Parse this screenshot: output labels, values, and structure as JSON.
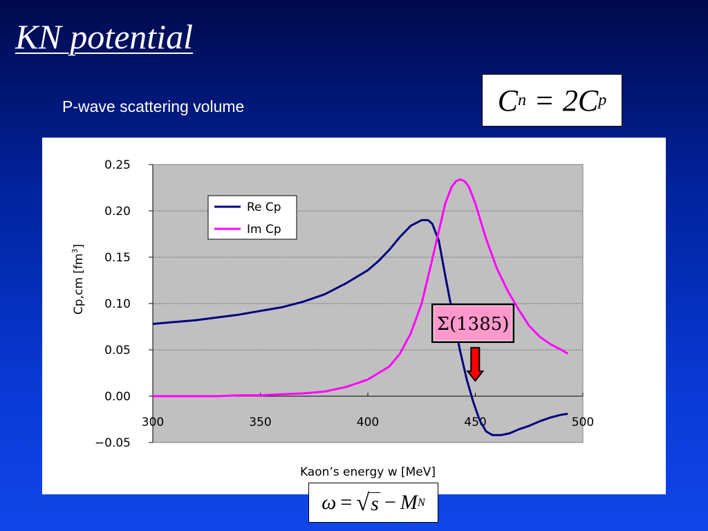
{
  "slide": {
    "title": "KN potential",
    "subtitle": "P-wave scattering volume"
  },
  "formulas": {
    "cn_lhs": "C",
    "cn_lhs_sub": "n",
    "cn_op": "=",
    "cn_rhs": "2C",
    "cn_rhs_sub": "p",
    "omega_lhs": "ω",
    "omega_eq": "=",
    "omega_sqrt_sign": "√",
    "omega_sqrt_arg": "s",
    "omega_minus": "−",
    "omega_m": "M",
    "omega_m_sub": "N"
  },
  "colors": {
    "re_cp": "#000080",
    "im_cp": "#ff00ff",
    "plot_bg": "#c0c0c0",
    "annotation_bg": "#ff99cc",
    "arrow": "#ff0000"
  },
  "chart_data": {
    "type": "line",
    "xlabel": "Kaon’s energy w [MeV]",
    "ylabel": "Cp,cm [fm3]",
    "xlim": [
      300,
      500
    ],
    "ylim": [
      -0.05,
      0.25
    ],
    "x_ticks": [
      "300",
      "350",
      "400",
      "450",
      "500"
    ],
    "y_ticks": [
      "0.25",
      "0.20",
      "0.15",
      "0.10",
      "0.05",
      "0.00",
      "−0.05"
    ],
    "y_tick_values": [
      0.25,
      0.2,
      0.15,
      0.1,
      0.05,
      0.0,
      -0.05
    ],
    "x_tick_values": [
      300,
      350,
      400,
      450,
      500
    ],
    "grid": "horizontal",
    "legend": "top-left",
    "annotation": {
      "text": "Σ(1385)",
      "arrow_x": 448,
      "arrow_y": 0.015
    },
    "series": [
      {
        "name": "Re Cp",
        "x": [
          300,
          310,
          320,
          330,
          340,
          350,
          360,
          370,
          380,
          390,
          400,
          405,
          410,
          415,
          420,
          425,
          428,
          430,
          433,
          436,
          440,
          443,
          446,
          449,
          452,
          455,
          458,
          462,
          466,
          470,
          475,
          480,
          485,
          490,
          493
        ],
        "y": [
          0.078,
          0.08,
          0.082,
          0.085,
          0.088,
          0.092,
          0.096,
          0.102,
          0.11,
          0.122,
          0.136,
          0.146,
          0.158,
          0.172,
          0.184,
          0.19,
          0.19,
          0.186,
          0.168,
          0.13,
          0.082,
          0.048,
          0.018,
          -0.006,
          -0.026,
          -0.038,
          -0.042,
          -0.042,
          -0.04,
          -0.036,
          -0.032,
          -0.027,
          -0.023,
          -0.02,
          -0.019
        ]
      },
      {
        "name": "Im Cp",
        "x": [
          300,
          310,
          320,
          330,
          340,
          350,
          360,
          370,
          380,
          390,
          400,
          405,
          410,
          415,
          420,
          425,
          430,
          433,
          436,
          439,
          441,
          443,
          445,
          447,
          450,
          455,
          460,
          465,
          470,
          475,
          480,
          485,
          490,
          493
        ],
        "y": [
          0.0,
          0.0,
          0.0,
          0.0,
          0.001,
          0.001,
          0.002,
          0.003,
          0.005,
          0.01,
          0.018,
          0.025,
          0.032,
          0.046,
          0.068,
          0.1,
          0.148,
          0.178,
          0.208,
          0.226,
          0.232,
          0.234,
          0.232,
          0.226,
          0.208,
          0.17,
          0.138,
          0.114,
          0.094,
          0.076,
          0.064,
          0.056,
          0.05,
          0.046
        ]
      }
    ]
  }
}
